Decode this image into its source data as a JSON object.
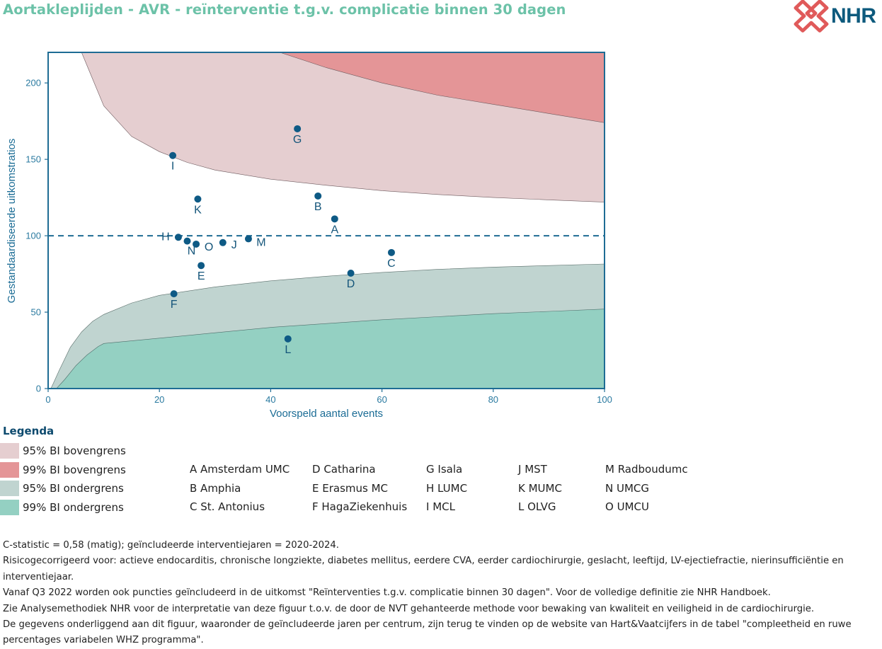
{
  "title": "Aortakleplijden - AVR - reïnterventie t.g.v. complicatie binnen 30 dagen",
  "logo": {
    "text": "NHR",
    "icon": "nhr-knot-icon",
    "color": "#e05a5a"
  },
  "chart_data": {
    "type": "funnel-scatter",
    "xlabel": "Voorspeld aantal events",
    "ylabel": "Gestandaardiseerde uitkomstratios",
    "xlim": [
      0,
      100
    ],
    "ylim": [
      0,
      220
    ],
    "xticks": [
      0,
      20,
      40,
      60,
      80,
      100
    ],
    "yticks": [
      0,
      50,
      100,
      150,
      200
    ],
    "reference_line": 100,
    "points": [
      {
        "label": "A",
        "x": 51.5,
        "y": 111
      },
      {
        "label": "B",
        "x": 48.5,
        "y": 126
      },
      {
        "label": "C",
        "x": 61.7,
        "y": 89
      },
      {
        "label": "D",
        "x": 54.4,
        "y": 75.5
      },
      {
        "label": "E",
        "x": 27.5,
        "y": 80.5
      },
      {
        "label": "F",
        "x": 22.6,
        "y": 62
      },
      {
        "label": "G",
        "x": 44.8,
        "y": 170
      },
      {
        "label": "H",
        "x": 23.4,
        "y": 99
      },
      {
        "label": "I",
        "x": 22.4,
        "y": 152.5
      },
      {
        "label": "J",
        "x": 31.4,
        "y": 95.5
      },
      {
        "label": "K",
        "x": 26.9,
        "y": 124
      },
      {
        "label": "L",
        "x": 43.1,
        "y": 32.5
      },
      {
        "label": "M",
        "x": 36,
        "y": 98
      },
      {
        "label": "N",
        "x": 25,
        "y": 96.5
      },
      {
        "label": "O",
        "x": 26.6,
        "y": 94.5
      }
    ],
    "bands": {
      "upper95": [
        [
          6,
          220
        ],
        [
          10,
          185
        ],
        [
          15,
          165
        ],
        [
          20,
          155
        ],
        [
          25,
          148
        ],
        [
          30,
          143
        ],
        [
          40,
          137
        ],
        [
          50,
          133
        ],
        [
          60,
          129.5
        ],
        [
          70,
          127
        ],
        [
          80,
          125
        ],
        [
          90,
          123.5
        ],
        [
          100,
          122
        ]
      ],
      "upper99": [
        [
          40,
          222
        ],
        [
          50,
          210
        ],
        [
          60,
          200
        ],
        [
          70,
          192
        ],
        [
          80,
          186
        ],
        [
          90,
          180
        ],
        [
          100,
          174
        ]
      ],
      "lower95": [
        [
          0.5,
          0
        ],
        [
          1,
          4
        ],
        [
          2,
          12
        ],
        [
          4,
          27
        ],
        [
          6,
          37
        ],
        [
          8,
          44
        ],
        [
          10,
          48.5
        ],
        [
          15,
          56
        ],
        [
          20,
          61
        ],
        [
          30,
          66.5
        ],
        [
          40,
          70.5
        ],
        [
          50,
          73.5
        ],
        [
          60,
          76
        ],
        [
          70,
          78
        ],
        [
          80,
          79.5
        ],
        [
          90,
          80.5
        ],
        [
          100,
          81.5
        ]
      ],
      "lower99": [
        [
          1.5,
          0
        ],
        [
          3,
          6
        ],
        [
          5,
          15
        ],
        [
          7,
          22
        ],
        [
          9,
          27.5
        ],
        [
          10,
          29.5
        ],
        [
          20,
          33
        ],
        [
          30,
          36.5
        ],
        [
          40,
          40
        ],
        [
          50,
          42.5
        ],
        [
          60,
          45
        ],
        [
          70,
          47
        ],
        [
          80,
          49
        ],
        [
          90,
          50.5
        ],
        [
          100,
          52
        ]
      ]
    },
    "colors": {
      "upper95": "#e5ced0",
      "upper99": "#e49597",
      "lower95": "#c0d4d0",
      "lower99": "#94d0c2",
      "axis": "#1e6c94",
      "point": "#0e5a85"
    }
  },
  "legend": {
    "title": "Legenda",
    "bands": [
      {
        "label": "95% BI bovengrens",
        "color": "#e5ced0"
      },
      {
        "label": "99% BI bovengrens",
        "color": "#e49597"
      },
      {
        "label": "95% BI ondergrens",
        "color": "#c0d4d0"
      },
      {
        "label": "99% BI ondergrens",
        "color": "#94d0c2"
      }
    ],
    "centers": [
      [
        "A Amsterdam UMC",
        "B Amphia",
        "C St. Antonius"
      ],
      [
        "D Catharina",
        "E Erasmus MC",
        "F HagaZiekenhuis"
      ],
      [
        "G Isala",
        "H LUMC",
        "I MCL"
      ],
      [
        "J MST",
        "K MUMC",
        "L OLVG"
      ],
      [
        "M Radboudumc",
        "N UMCG",
        "O UMCU"
      ]
    ]
  },
  "notes": [
    "C-statistic =  0,58 (matig); geïncludeerde interventiejaren = 2020-2024.",
    "Risicogecorrigeerd voor: actieve endocarditis, chronische longziekte, diabetes mellitus, eerdere CVA, eerder cardiochirurgie, geslacht, leeftijd, LV-ejectiefractie, nierinsufficiëntie en interventiejaar.",
    "Vanaf Q3 2022 worden ook puncties geïncludeerd in de uitkomst \"Reïnterventies t.g.v. complicatie binnen 30 dagen\". Voor de volledige definitie zie NHR Handboek.",
    "Zie Analysemethodiek NHR voor de interpretatie van deze figuur t.o.v. de door de NVT gehanteerde methode voor bewaking van kwaliteit en veiligheid in de cardiochirurgie.",
    "De gegevens onderliggend aan dit figuur, waaronder de geïncludeerde jaren per centrum, zijn terug te vinden op de website van Hart&Vaatcijfers in de tabel \"compleetheid en ruwe percentages variabelen WHZ programma\"."
  ]
}
